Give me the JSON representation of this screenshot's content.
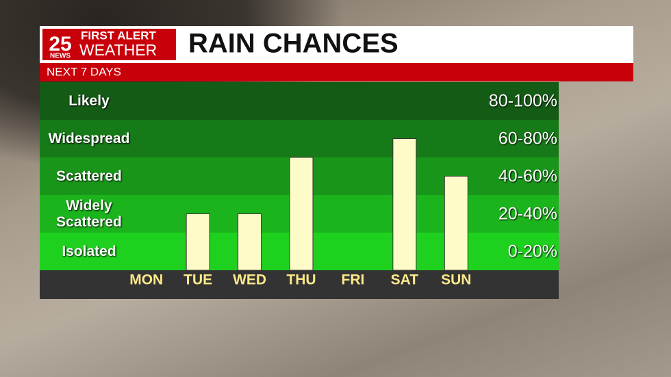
{
  "brand": {
    "number": "25",
    "network": "NEWS",
    "tagline": "FIRST ALERT",
    "name": "WEATHER"
  },
  "chart_data": {
    "type": "bar",
    "title": "RAIN CHANCES",
    "subtitle": "NEXT 7 DAYS",
    "categories": [
      "MON",
      "TUE",
      "WED",
      "THU",
      "FRI",
      "SAT",
      "SUN"
    ],
    "values": [
      0,
      30,
      30,
      60,
      0,
      70,
      50
    ],
    "color": "#fdfbc8",
    "ylim": [
      0,
      100
    ],
    "bands": [
      {
        "name": "Isolated",
        "label": "0-20%",
        "range": [
          0,
          20
        ],
        "color": "#1fd11f"
      },
      {
        "name": "Widely Scattered",
        "label": "20-40%",
        "range": [
          20,
          40
        ],
        "color": "#1cb41c"
      },
      {
        "name": "Scattered",
        "label": "40-60%",
        "range": [
          40,
          60
        ],
        "color": "#19961a"
      },
      {
        "name": "Widespread",
        "label": "60-80%",
        "range": [
          60,
          80
        ],
        "color": "#177a18"
      },
      {
        "name": "Likely",
        "label": "80-100%",
        "range": [
          80,
          100
        ],
        "color": "#145c15"
      }
    ]
  }
}
